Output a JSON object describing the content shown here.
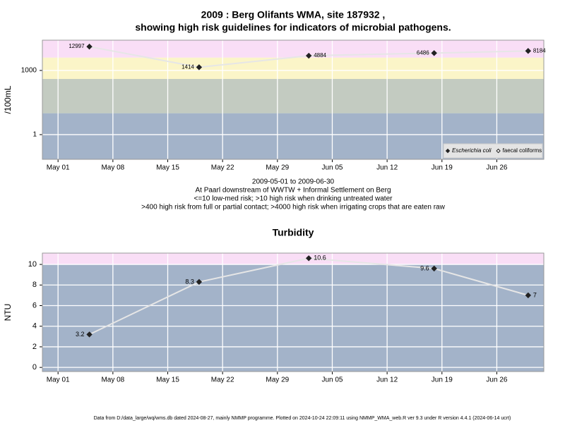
{
  "chart_data": [
    {
      "type": "line",
      "title": [
        "2009 : Berg Olifants WMA, site 187932 ,",
        "showing high risk guidelines for indicators of microbial pathogens."
      ],
      "ylabel": "/100mL",
      "notes": [
        "2009-05-01 to 2009-06-30",
        "At Paarl downstream of WWTW + Informal Settlement on Berg",
        "<=10 low-med risk; >10 high risk when drinking untreated water",
        ">400 high risk from full or partial contact; >4000 high risk when irrigating crops that are eaten raw"
      ],
      "x": [
        "2009-05-05",
        "2009-05-19",
        "2009-06-02",
        "2009-06-18",
        "2009-06-30"
      ],
      "series": [
        {
          "name": "Escherichia coli",
          "color": "#222222",
          "marker": "filled",
          "values": [
            12997,
            1414,
            4884,
            6486,
            8184
          ]
        },
        {
          "name": "faecal coliforms",
          "color": "#222222",
          "marker": "open",
          "values": [
            null,
            null,
            null,
            null,
            null
          ]
        }
      ],
      "line_color": "#e6e6e6",
      "xlim": [
        "2009-04-29",
        "2009-07-02"
      ],
      "xticks": [
        {
          "value": "2009-05-01",
          "label": "May 01"
        },
        {
          "value": "2009-05-08",
          "label": "May 08"
        },
        {
          "value": "2009-05-15",
          "label": "May 15"
        },
        {
          "value": "2009-05-22",
          "label": "May 22"
        },
        {
          "value": "2009-05-29",
          "label": "May 29"
        },
        {
          "value": "2009-06-05",
          "label": "Jun 05"
        },
        {
          "value": "2009-06-12",
          "label": "Jun 12"
        },
        {
          "value": "2009-06-19",
          "label": "Jun 19"
        },
        {
          "value": "2009-06-26",
          "label": "Jun 26"
        }
      ],
      "ylim": [
        0.07,
        26000
      ],
      "yticks": [
        1,
        1000
      ],
      "log_y": true,
      "band_breaks": [
        10,
        400,
        4000
      ],
      "band_colors": [
        "#a3b3c9",
        "#c3cbc1",
        "#fbf5c8",
        "#f9def6"
      ],
      "grid": true,
      "legend": "lower right"
    },
    {
      "type": "line",
      "title": [
        "Turbidity"
      ],
      "ylabel": "NTU",
      "x": [
        "2009-05-05",
        "2009-05-19",
        "2009-06-02",
        "2009-06-18",
        "2009-06-30"
      ],
      "series": [
        {
          "name": "Turbidity",
          "color": "#222222",
          "marker": "filled",
          "values": [
            3.2,
            8.3,
            10.6,
            9.6,
            7
          ]
        }
      ],
      "line_color": "#e6e6e6",
      "xlim": [
        "2009-04-29",
        "2009-07-02"
      ],
      "xticks": [
        {
          "value": "2009-05-01",
          "label": "May 01"
        },
        {
          "value": "2009-05-08",
          "label": "May 08"
        },
        {
          "value": "2009-05-15",
          "label": "May 15"
        },
        {
          "value": "2009-05-22",
          "label": "May 22"
        },
        {
          "value": "2009-05-29",
          "label": "May 29"
        },
        {
          "value": "2009-06-05",
          "label": "Jun 05"
        },
        {
          "value": "2009-06-12",
          "label": "Jun 12"
        },
        {
          "value": "2009-06-19",
          "label": "Jun 19"
        },
        {
          "value": "2009-06-26",
          "label": "Jun 26"
        }
      ],
      "ylim": [
        -0.4,
        11.1
      ],
      "yticks": [
        0,
        2,
        4,
        6,
        8,
        10
      ],
      "log_y": false,
      "band_breaks": [
        10
      ],
      "band_colors": [
        "#a3b3c9",
        "#f9def6"
      ],
      "grid": true,
      "legend": null
    }
  ],
  "footer": "Data from D:/data_large/wq/wms.db dated 2024-08-27, mainly NMMP programme. Plotted on 2024-10-24 22:09:11 using NMMP_WMA_web.R ver 9.3 under R version 4.4.1 (2024-06-14 ucrt)"
}
